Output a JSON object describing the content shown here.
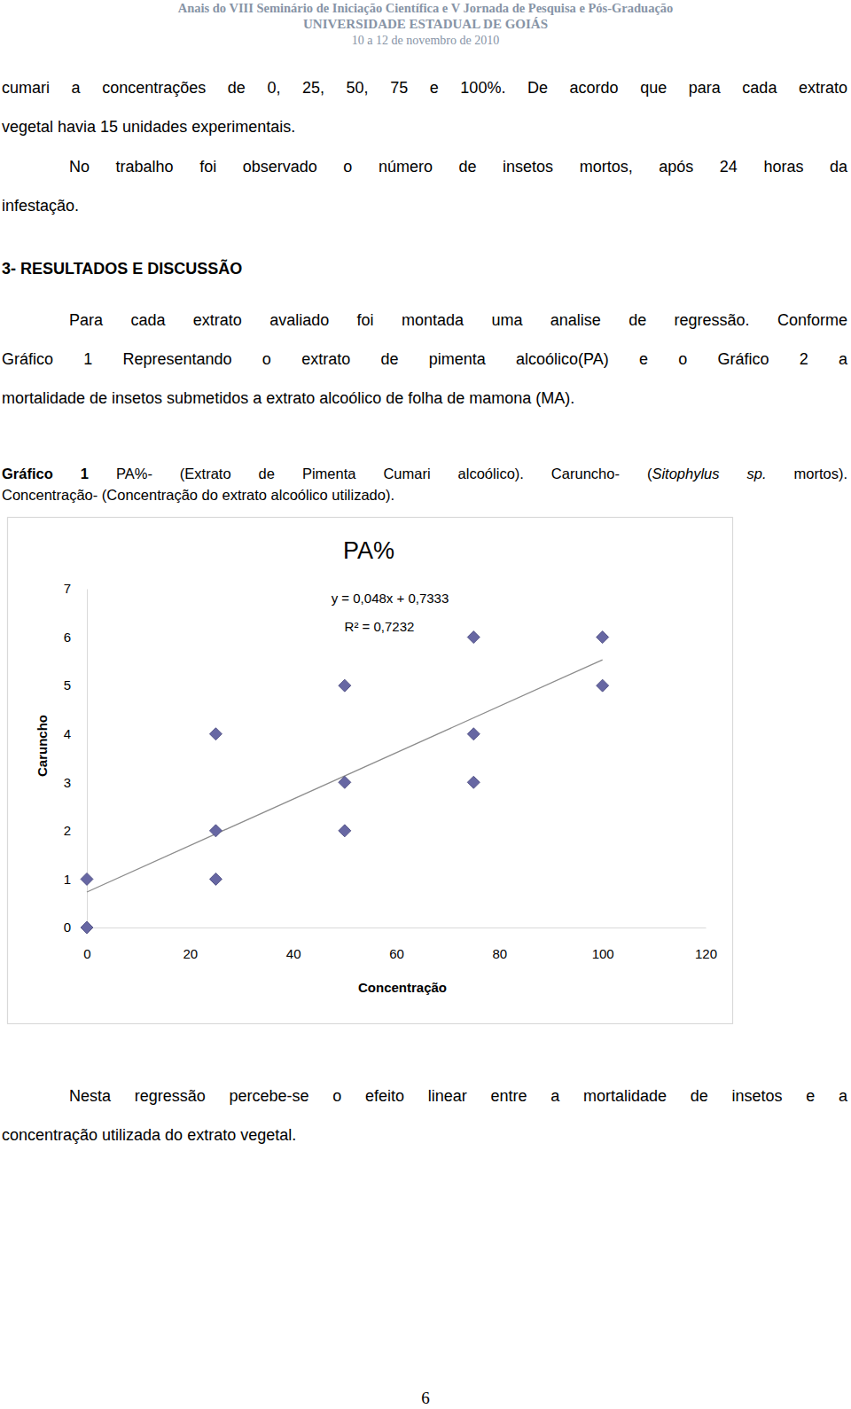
{
  "header": {
    "lines": [
      "Anais do VIII Seminário de Iniciação Científica e V Jornada de Pesquisa e Pós-Graduação",
      "UNIVERSIDADE ESTADUAL DE GOIÁS",
      "10 a 12 de novembro de 2010"
    ]
  },
  "body": [
    {
      "kind": "paragraph",
      "lines": [
        "cumari a concentrações de 0, 25, 50, 75 e 100%. De acordo que para cada extrato",
        "vegetal havia 15 unidades experimentais."
      ]
    },
    {
      "kind": "indented-paragraph",
      "lines": [
        "No trabalho foi observado o número de insetos mortos, após 24 horas da",
        "infestação."
      ]
    },
    {
      "kind": "heading",
      "lines": [
        "3- RESULTADOS E DISCUSSÃO"
      ]
    },
    {
      "kind": "indented-paragraph",
      "lines": [
        "Para cada extrato avaliado foi montada uma analise de regressão. Conforme",
        "Gráfico 1 Representando o extrato de pimenta alcoólico(PA) e o Gráfico 2 a",
        "mortalidade de insetos submetidos a extrato alcoólico de folha de mamona (MA)."
      ]
    },
    {
      "kind": "caption",
      "lines": [
        [
          {
            "text": "Gráfico 1",
            "style": "bold"
          },
          {
            "text": " PA%- (Extrato de Pimenta Cumari alcoólico). Caruncho- (",
            "style": "normal"
          },
          {
            "text": "Sitophylus sp.",
            "style": "italic"
          },
          {
            "text": " mortos).",
            "style": "normal"
          }
        ],
        [
          {
            "text": "Concentração- (Concentração do extrato alcoólico utilizado).",
            "style": "normal"
          }
        ]
      ]
    },
    {
      "kind": "indented-paragraph",
      "lines": [
        "Nesta regressão percebe-se o efeito linear entre a mortalidade de insetos e a",
        "concentração utilizada do extrato vegetal."
      ]
    }
  ],
  "chart_data": {
    "type": "scatter",
    "title": "PA%",
    "x_label": "Concentração",
    "y_label": "Caruncho",
    "x": [
      0,
      0,
      25,
      25,
      25,
      50,
      50,
      50,
      75,
      75,
      75,
      100,
      100
    ],
    "values": [
      0,
      1,
      1,
      2,
      4,
      2,
      3,
      5,
      3,
      4,
      6,
      5,
      6
    ],
    "xlim": [
      0,
      120
    ],
    "xticks": [
      0,
      20,
      40,
      60,
      80,
      100,
      120
    ],
    "ylim": [
      0,
      7
    ],
    "yticks": [
      0,
      1,
      2,
      3,
      4,
      5,
      6,
      7
    ],
    "marker": "diamond",
    "color": "#6767a3",
    "grid": false,
    "trendline": {
      "equation": "y = 0,048x + 0,7333",
      "r_squared": "R² = 0,7232",
      "slope": 0.048,
      "intercept": 0.7333,
      "color": "#8c8c8c"
    }
  },
  "page_number": "6"
}
